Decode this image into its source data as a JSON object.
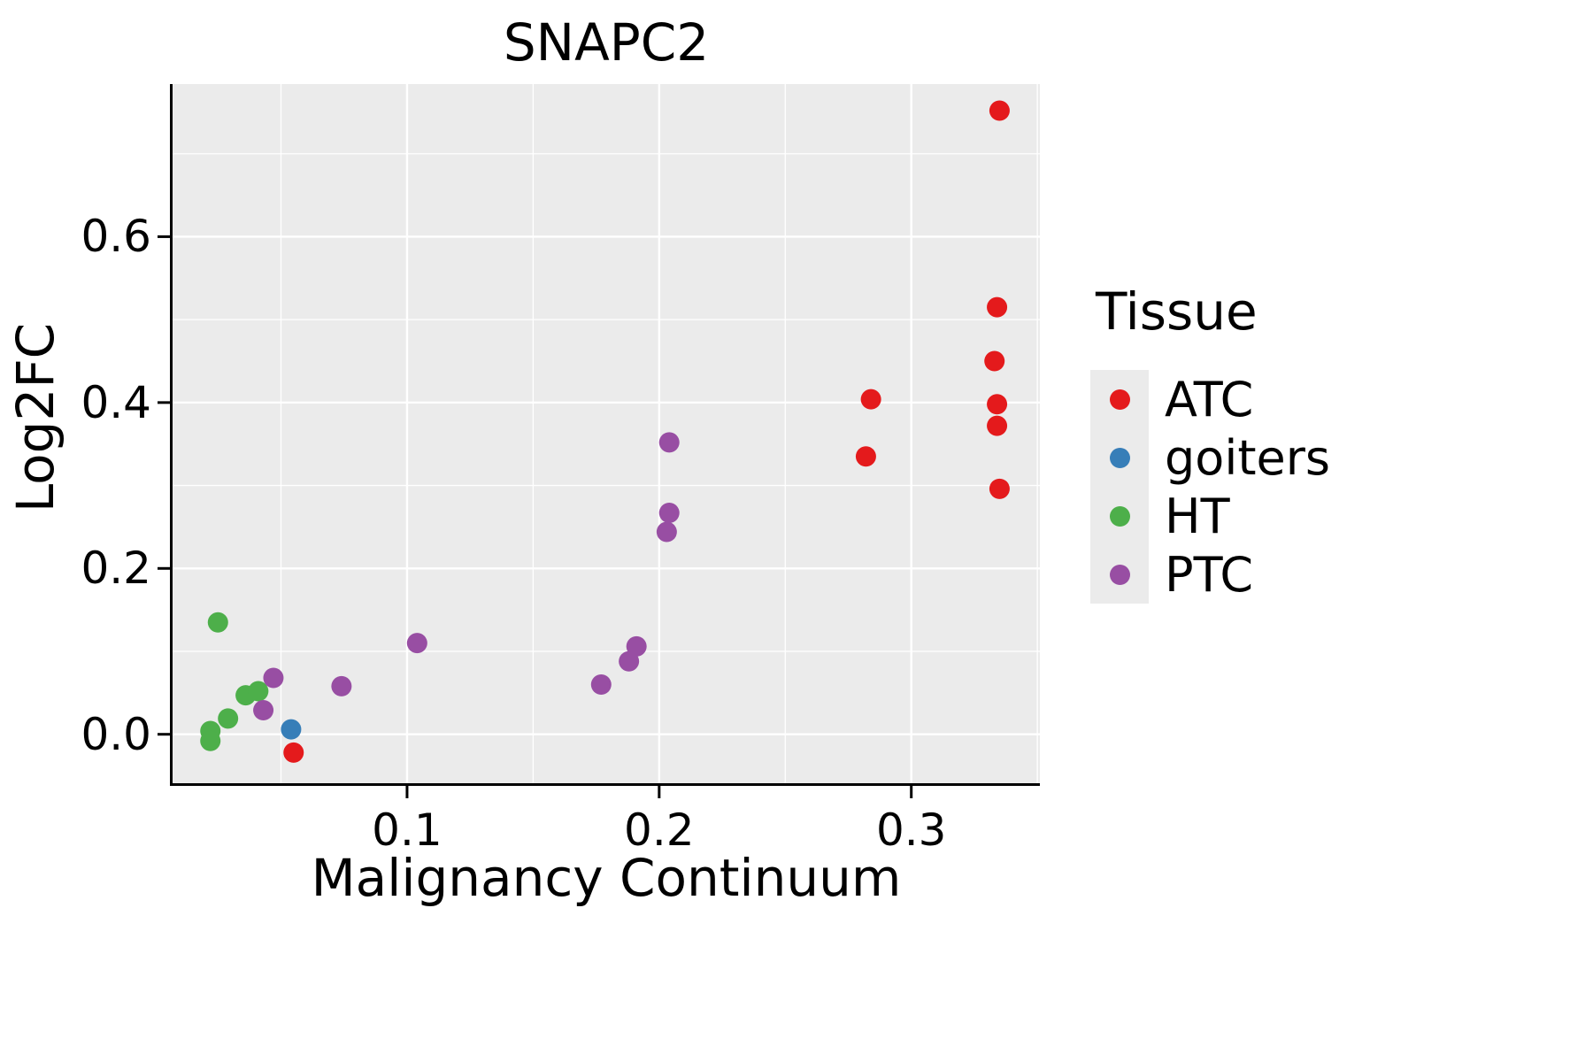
{
  "chart_data": {
    "type": "scatter",
    "title": "SNAPC2",
    "xlabel": "Malignancy Continuum",
    "ylabel": "Log2FC",
    "xlim": [
      0.007,
      0.351
    ],
    "ylim": [
      -0.059,
      0.784
    ],
    "xticks": [
      0.1,
      0.2,
      0.3
    ],
    "xtick_labels": [
      "0.1",
      "0.2",
      "0.3"
    ],
    "yticks": [
      0.0,
      0.2,
      0.4,
      0.6
    ],
    "ytick_labels": [
      "0.0",
      "0.2",
      "0.4",
      "0.6"
    ],
    "x_minor": [
      0.05,
      0.15,
      0.25,
      0.35
    ],
    "y_minor": [
      0.1,
      0.3,
      0.5,
      0.7
    ],
    "grid": true,
    "panel_background": "#EBEBEB",
    "grid_color": "#FFFFFF",
    "axis_color": "#000000",
    "legend_title": "Tissue",
    "legend_position": "right",
    "series": [
      {
        "name": "ATC",
        "color": "#E41A1C",
        "points": [
          [
            0.335,
            0.752
          ],
          [
            0.334,
            0.515
          ],
          [
            0.333,
            0.45
          ],
          [
            0.334,
            0.398
          ],
          [
            0.334,
            0.372
          ],
          [
            0.335,
            0.296
          ],
          [
            0.284,
            0.404
          ],
          [
            0.282,
            0.335
          ],
          [
            0.055,
            -0.022
          ]
        ]
      },
      {
        "name": "goiters",
        "color": "#377EB8",
        "points": [
          [
            0.054,
            0.006
          ]
        ]
      },
      {
        "name": "HT",
        "color": "#4DAF4A",
        "points": [
          [
            0.025,
            0.135
          ],
          [
            0.022,
            0.004
          ],
          [
            0.022,
            -0.008
          ],
          [
            0.029,
            0.019
          ],
          [
            0.036,
            0.047
          ],
          [
            0.041,
            0.052
          ]
        ]
      },
      {
        "name": "PTC",
        "color": "#984EA3",
        "points": [
          [
            0.047,
            0.068
          ],
          [
            0.043,
            0.029
          ],
          [
            0.074,
            0.058
          ],
          [
            0.104,
            0.11
          ],
          [
            0.177,
            0.06
          ],
          [
            0.188,
            0.088
          ],
          [
            0.191,
            0.106
          ],
          [
            0.204,
            0.352
          ],
          [
            0.204,
            0.267
          ],
          [
            0.203,
            0.244
          ]
        ]
      }
    ]
  }
}
